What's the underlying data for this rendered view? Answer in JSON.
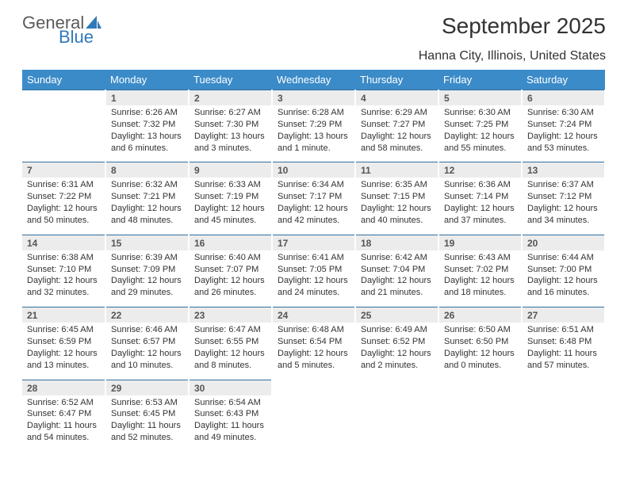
{
  "brand": {
    "line1": "General",
    "line2": "Blue",
    "sail_color": "#2f79b9"
  },
  "title": "September 2025",
  "location": "Hanna City, Illinois, United States",
  "colors": {
    "header_bg": "#3b8bc8",
    "header_text": "#ffffff",
    "daynum_bg": "#ececec",
    "daynum_text": "#555555",
    "rule": "#2f6fa0",
    "body_text": "#333333"
  },
  "day_headers": [
    "Sunday",
    "Monday",
    "Tuesday",
    "Wednesday",
    "Thursday",
    "Friday",
    "Saturday"
  ],
  "weeks": [
    [
      {
        "n": "",
        "lines": []
      },
      {
        "n": "1",
        "lines": [
          "Sunrise: 6:26 AM",
          "Sunset: 7:32 PM",
          "Daylight: 13 hours and 6 minutes."
        ]
      },
      {
        "n": "2",
        "lines": [
          "Sunrise: 6:27 AM",
          "Sunset: 7:30 PM",
          "Daylight: 13 hours and 3 minutes."
        ]
      },
      {
        "n": "3",
        "lines": [
          "Sunrise: 6:28 AM",
          "Sunset: 7:29 PM",
          "Daylight: 13 hours and 1 minute."
        ]
      },
      {
        "n": "4",
        "lines": [
          "Sunrise: 6:29 AM",
          "Sunset: 7:27 PM",
          "Daylight: 12 hours and 58 minutes."
        ]
      },
      {
        "n": "5",
        "lines": [
          "Sunrise: 6:30 AM",
          "Sunset: 7:25 PM",
          "Daylight: 12 hours and 55 minutes."
        ]
      },
      {
        "n": "6",
        "lines": [
          "Sunrise: 6:30 AM",
          "Sunset: 7:24 PM",
          "Daylight: 12 hours and 53 minutes."
        ]
      }
    ],
    [
      {
        "n": "7",
        "lines": [
          "Sunrise: 6:31 AM",
          "Sunset: 7:22 PM",
          "Daylight: 12 hours and 50 minutes."
        ]
      },
      {
        "n": "8",
        "lines": [
          "Sunrise: 6:32 AM",
          "Sunset: 7:21 PM",
          "Daylight: 12 hours and 48 minutes."
        ]
      },
      {
        "n": "9",
        "lines": [
          "Sunrise: 6:33 AM",
          "Sunset: 7:19 PM",
          "Daylight: 12 hours and 45 minutes."
        ]
      },
      {
        "n": "10",
        "lines": [
          "Sunrise: 6:34 AM",
          "Sunset: 7:17 PM",
          "Daylight: 12 hours and 42 minutes."
        ]
      },
      {
        "n": "11",
        "lines": [
          "Sunrise: 6:35 AM",
          "Sunset: 7:15 PM",
          "Daylight: 12 hours and 40 minutes."
        ]
      },
      {
        "n": "12",
        "lines": [
          "Sunrise: 6:36 AM",
          "Sunset: 7:14 PM",
          "Daylight: 12 hours and 37 minutes."
        ]
      },
      {
        "n": "13",
        "lines": [
          "Sunrise: 6:37 AM",
          "Sunset: 7:12 PM",
          "Daylight: 12 hours and 34 minutes."
        ]
      }
    ],
    [
      {
        "n": "14",
        "lines": [
          "Sunrise: 6:38 AM",
          "Sunset: 7:10 PM",
          "Daylight: 12 hours and 32 minutes."
        ]
      },
      {
        "n": "15",
        "lines": [
          "Sunrise: 6:39 AM",
          "Sunset: 7:09 PM",
          "Daylight: 12 hours and 29 minutes."
        ]
      },
      {
        "n": "16",
        "lines": [
          "Sunrise: 6:40 AM",
          "Sunset: 7:07 PM",
          "Daylight: 12 hours and 26 minutes."
        ]
      },
      {
        "n": "17",
        "lines": [
          "Sunrise: 6:41 AM",
          "Sunset: 7:05 PM",
          "Daylight: 12 hours and 24 minutes."
        ]
      },
      {
        "n": "18",
        "lines": [
          "Sunrise: 6:42 AM",
          "Sunset: 7:04 PM",
          "Daylight: 12 hours and 21 minutes."
        ]
      },
      {
        "n": "19",
        "lines": [
          "Sunrise: 6:43 AM",
          "Sunset: 7:02 PM",
          "Daylight: 12 hours and 18 minutes."
        ]
      },
      {
        "n": "20",
        "lines": [
          "Sunrise: 6:44 AM",
          "Sunset: 7:00 PM",
          "Daylight: 12 hours and 16 minutes."
        ]
      }
    ],
    [
      {
        "n": "21",
        "lines": [
          "Sunrise: 6:45 AM",
          "Sunset: 6:59 PM",
          "Daylight: 12 hours and 13 minutes."
        ]
      },
      {
        "n": "22",
        "lines": [
          "Sunrise: 6:46 AM",
          "Sunset: 6:57 PM",
          "Daylight: 12 hours and 10 minutes."
        ]
      },
      {
        "n": "23",
        "lines": [
          "Sunrise: 6:47 AM",
          "Sunset: 6:55 PM",
          "Daylight: 12 hours and 8 minutes."
        ]
      },
      {
        "n": "24",
        "lines": [
          "Sunrise: 6:48 AM",
          "Sunset: 6:54 PM",
          "Daylight: 12 hours and 5 minutes."
        ]
      },
      {
        "n": "25",
        "lines": [
          "Sunrise: 6:49 AM",
          "Sunset: 6:52 PM",
          "Daylight: 12 hours and 2 minutes."
        ]
      },
      {
        "n": "26",
        "lines": [
          "Sunrise: 6:50 AM",
          "Sunset: 6:50 PM",
          "Daylight: 12 hours and 0 minutes."
        ]
      },
      {
        "n": "27",
        "lines": [
          "Sunrise: 6:51 AM",
          "Sunset: 6:48 PM",
          "Daylight: 11 hours and 57 minutes."
        ]
      }
    ],
    [
      {
        "n": "28",
        "lines": [
          "Sunrise: 6:52 AM",
          "Sunset: 6:47 PM",
          "Daylight: 11 hours and 54 minutes."
        ]
      },
      {
        "n": "29",
        "lines": [
          "Sunrise: 6:53 AM",
          "Sunset: 6:45 PM",
          "Daylight: 11 hours and 52 minutes."
        ]
      },
      {
        "n": "30",
        "lines": [
          "Sunrise: 6:54 AM",
          "Sunset: 6:43 PM",
          "Daylight: 11 hours and 49 minutes."
        ]
      },
      {
        "n": "",
        "lines": []
      },
      {
        "n": "",
        "lines": []
      },
      {
        "n": "",
        "lines": []
      },
      {
        "n": "",
        "lines": []
      }
    ]
  ]
}
